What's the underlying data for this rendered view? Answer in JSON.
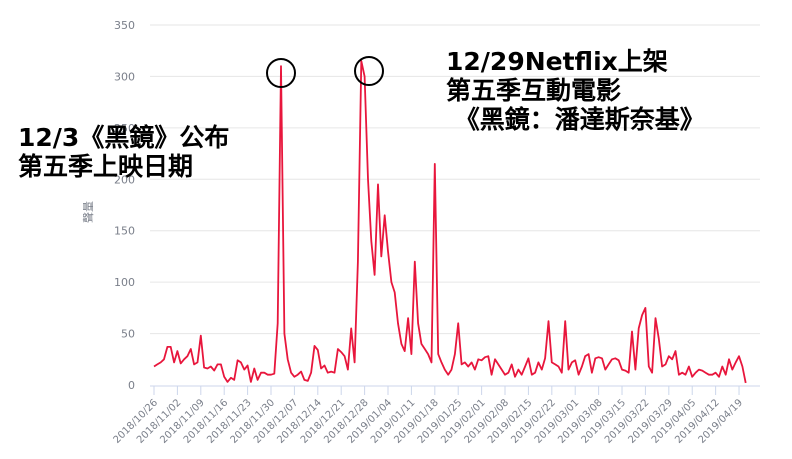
{
  "chart_data": {
    "type": "line",
    "title": "",
    "xlabel": "",
    "ylabel": "聲量",
    "ylim": [
      0,
      350
    ],
    "yticks": [
      0,
      50,
      100,
      150,
      200,
      250,
      300,
      350
    ],
    "grid": true,
    "legend": null,
    "line_color": "#e8163c",
    "xtick_labels": [
      "2018/10/26",
      "2018/11/02",
      "2018/11/09",
      "2018/11/16",
      "2018/11/23",
      "2018/11/30",
      "2018/12/07",
      "2018/12/14",
      "2018/12/21",
      "2018/12/28",
      "2019/01/04",
      "2019/01/11",
      "2019/01/18",
      "2019/01/25",
      "2019/02/01",
      "2019/02/08",
      "2019/02/15",
      "2019/02/22",
      "2019/03/01",
      "2019/03/08",
      "2019/03/15",
      "2019/03/22",
      "2019/03/29",
      "2019/04/05",
      "2019/04/12",
      "2019/04/19"
    ],
    "start_date": "2018/10/26",
    "series": [
      {
        "name": "聲量",
        "values": [
          18,
          20,
          22,
          25,
          37,
          37,
          22,
          33,
          21,
          25,
          28,
          35,
          20,
          22,
          48,
          17,
          16,
          18,
          14,
          20,
          20,
          8,
          3,
          7,
          5,
          24,
          22,
          15,
          19,
          3,
          16,
          5,
          12,
          12,
          10,
          10,
          11,
          60,
          310,
          50,
          25,
          12,
          8,
          10,
          13,
          5,
          4,
          12,
          38,
          34,
          16,
          19,
          12,
          13,
          12,
          35,
          32,
          28,
          15,
          55,
          22,
          120,
          315,
          300,
          200,
          140,
          107,
          195,
          125,
          165,
          130,
          100,
          90,
          60,
          40,
          33,
          65,
          30,
          120,
          60,
          40,
          35,
          30,
          22,
          215,
          30,
          22,
          15,
          10,
          15,
          30,
          60,
          20,
          22,
          18,
          22,
          15,
          25,
          24,
          27,
          28,
          10,
          25,
          20,
          15,
          10,
          12,
          20,
          8,
          15,
          10,
          18,
          26,
          10,
          12,
          22,
          15,
          26,
          62,
          22,
          20,
          18,
          12,
          62,
          15,
          22,
          24,
          10,
          18,
          28,
          30,
          12,
          26,
          27,
          26,
          15,
          20,
          25,
          26,
          24,
          15,
          14,
          12,
          52,
          15,
          55,
          68,
          75,
          18,
          12,
          65,
          45,
          18,
          20,
          28,
          25,
          33,
          10,
          12,
          10,
          18,
          8,
          12,
          15,
          14,
          12,
          10,
          10,
          12,
          8,
          18,
          10,
          25,
          15,
          22,
          28,
          18,
          2
        ]
      }
    ],
    "annotations": [
      {
        "text": "12/3《黑鏡》公布\n第五季上映日期",
        "target_date": "2018/12/03",
        "marker": "circle"
      },
      {
        "text": "12/29Netflix上架\n第五季互動電影\n《黑鏡：潘達斯奈基》",
        "target_date": "2018/12/29",
        "marker": "circle"
      }
    ]
  },
  "annotations": {
    "left": "12/3《黑鏡》公布\n第五季上映日期",
    "right": "12/29Netflix上架\n第五季互動電影\n 《黑鏡：潘達斯奈基》"
  }
}
